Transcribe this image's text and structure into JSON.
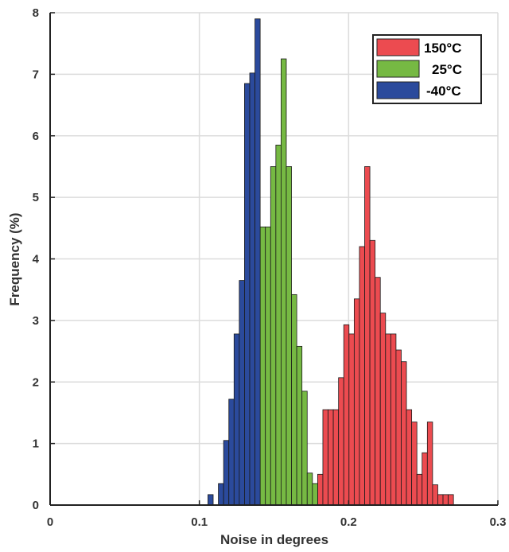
{
  "chart_data": {
    "type": "bar",
    "subtype": "overlaid-histogram",
    "xlabel": "Noise in degrees",
    "ylabel": "Frequency (%)",
    "xlim": [
      0,
      0.3
    ],
    "ylim": [
      0,
      8
    ],
    "xticks": [
      0,
      0.1,
      0.2,
      0.3
    ],
    "xtick_labels": [
      "0",
      "0.1",
      "0.2",
      "0.3"
    ],
    "yticks": [
      0,
      1,
      2,
      3,
      4,
      5,
      6,
      7,
      8
    ],
    "ytick_labels": [
      "0",
      "1",
      "2",
      "3",
      "4",
      "5",
      "6",
      "7",
      "8"
    ],
    "grid": true,
    "legend_position": "top-right",
    "bin_width": 0.0035,
    "series": [
      {
        "name": "150°C",
        "color": "#ec4b50",
        "x": [
          0.1705,
          0.174,
          0.1775,
          0.181,
          0.1845,
          0.188,
          0.1915,
          0.195,
          0.1985,
          0.202,
          0.2055,
          0.209,
          0.2125,
          0.216,
          0.2195,
          0.223,
          0.2265,
          0.23,
          0.2335,
          0.237,
          0.2405,
          0.244,
          0.2475,
          0.251,
          0.2545,
          0.258,
          0.2615,
          0.265,
          0.2685
        ],
        "values": [
          0.17,
          0.17,
          0.17,
          0.5,
          1.55,
          1.55,
          1.55,
          2.07,
          2.93,
          2.78,
          3.35,
          4.2,
          5.5,
          4.3,
          3.7,
          3.12,
          2.78,
          2.78,
          2.52,
          2.33,
          1.55,
          1.35,
          0.5,
          0.85,
          1.35,
          0.33,
          0.17,
          0.17,
          0.17
        ]
      },
      {
        "name": "25°C",
        "color": "#76b943",
        "x": [
          0.118,
          0.1215,
          0.125,
          0.1285,
          0.132,
          0.1355,
          0.139,
          0.1425,
          0.146,
          0.1495,
          0.153,
          0.1565,
          0.16,
          0.1635,
          0.167,
          0.1705,
          0.174,
          0.1775
        ],
        "values": [
          0.35,
          0.17,
          0.52,
          0.85,
          1.85,
          3.42,
          4.52,
          4.52,
          4.52,
          5.5,
          5.85,
          7.25,
          5.5,
          3.42,
          2.58,
          1.85,
          0.52,
          0.35
        ]
      },
      {
        "name": "-40°C",
        "color": "#2b4a9c",
        "x": [
          0.1075,
          0.111,
          0.1145,
          0.118,
          0.1215,
          0.125,
          0.1285,
          0.132,
          0.1355,
          0.139
        ],
        "values": [
          0.17,
          0.0,
          0.35,
          1.05,
          1.72,
          2.78,
          3.65,
          6.85,
          7.02,
          7.9
        ]
      }
    ]
  }
}
